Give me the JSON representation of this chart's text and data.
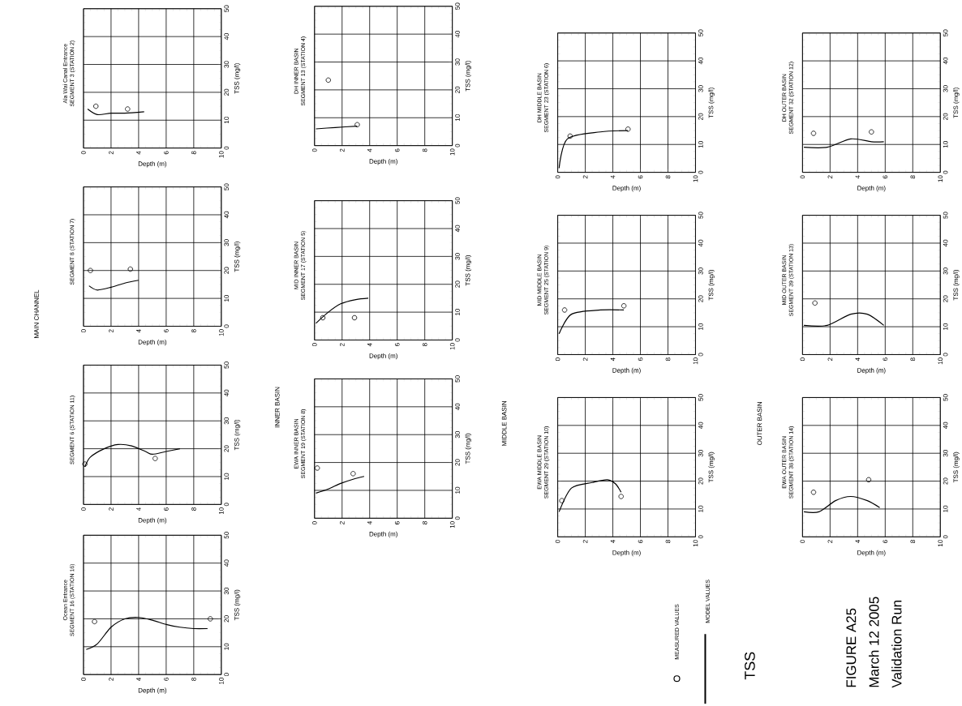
{
  "chart_data": [
    {
      "type": "line",
      "title": "Ala Wai Canal Entrance",
      "subtitle": "SEGMENT 3 (STATION 2)",
      "xlabel": "Depth (m)",
      "ylabel": "TSS (mg/l)",
      "xlim": [
        0,
        10
      ],
      "ylim": [
        0,
        50
      ],
      "xticks": [
        0,
        2,
        4,
        6,
        8,
        10
      ],
      "yticks": [
        0,
        10,
        20,
        30,
        40,
        50
      ],
      "grid": true,
      "series": [
        {
          "type": "line",
          "color": "#000000",
          "line_style": "solid",
          "x": [
            0.3,
            1,
            2,
            3,
            4.4
          ],
          "values": [
            14,
            12,
            12.5,
            12.5,
            13
          ]
        },
        {
          "type": "scatter",
          "color": "#000000",
          "marker": "circle",
          "x": [
            0.9,
            3.2
          ],
          "values": [
            15,
            14
          ]
        }
      ]
    },
    {
      "type": "line",
      "title": "SEGMENT 8 (STATION 7)",
      "xlabel": "Depth (m)",
      "ylabel": "TSS (mg/l)",
      "xlim": [
        0,
        10
      ],
      "ylim": [
        0,
        50
      ],
      "xticks": [
        0,
        2,
        4,
        6,
        8,
        10
      ],
      "yticks": [
        0,
        10,
        20,
        30,
        40,
        50
      ],
      "grid": true,
      "series": [
        {
          "type": "line",
          "color": "#000000",
          "line_style": "solid",
          "x": [
            0.4,
            1,
            2,
            3,
            4
          ],
          "values": [
            14.5,
            13,
            14,
            15.5,
            16.5
          ]
        },
        {
          "type": "scatter",
          "color": "#000000",
          "marker": "circle",
          "x": [
            0.5,
            3.4
          ],
          "values": [
            20,
            20.5
          ]
        }
      ]
    },
    {
      "type": "line",
      "title": "SEGMENT 6 (STATION 11)",
      "xlabel": "Depth (m)",
      "ylabel": "TSS (mg/l)",
      "xlim": [
        0,
        10
      ],
      "ylim": [
        0,
        50
      ],
      "xticks": [
        0,
        2,
        4,
        6,
        8,
        10
      ],
      "yticks": [
        0,
        10,
        20,
        30,
        40,
        50
      ],
      "grid": true,
      "series": [
        {
          "type": "line",
          "color": "#000000",
          "line_style": "solid",
          "x": [
            0.1,
            0.5,
            1.5,
            2.5,
            3.5,
            4.5,
            5,
            6,
            7
          ],
          "values": [
            13.5,
            17,
            20,
            21.5,
            21,
            19,
            18,
            19,
            20
          ]
        },
        {
          "type": "scatter",
          "color": "#000000",
          "marker": "circle",
          "x": [
            0.1,
            5.2
          ],
          "values": [
            14.5,
            16.5
          ]
        }
      ]
    },
    {
      "type": "line",
      "title": "Ocean Entrance",
      "subtitle": "SEGMENT 16 (STATION 16)",
      "xlabel": "Depth (m)",
      "ylabel": "TSS (mg/l)",
      "xlim": [
        0,
        10
      ],
      "ylim": [
        0,
        50
      ],
      "xticks": [
        0,
        2,
        4,
        6,
        8,
        10
      ],
      "yticks": [
        0,
        10,
        20,
        30,
        40,
        50
      ],
      "grid": true,
      "series": [
        {
          "type": "line",
          "color": "#000000",
          "line_style": "solid",
          "x": [
            0.2,
            1,
            2,
            3,
            4,
            5,
            6,
            7,
            8,
            9
          ],
          "values": [
            9,
            11,
            17,
            20,
            20.5,
            19.5,
            18,
            17,
            16.5,
            16.5
          ]
        },
        {
          "type": "scatter",
          "color": "#000000",
          "marker": "circle",
          "x": [
            0.8,
            9.2
          ],
          "values": [
            19,
            20
          ]
        }
      ]
    },
    {
      "type": "line",
      "title": "DH INNER BASIN",
      "subtitle": "SEGMENT 13 (STATION 4)",
      "xlabel": "Depth (m)",
      "ylabel": "TSS (mg/l)",
      "xlim": [
        0,
        10
      ],
      "ylim": [
        0,
        50
      ],
      "xticks": [
        0,
        2,
        4,
        6,
        8,
        10
      ],
      "yticks": [
        0,
        10,
        20,
        30,
        40,
        50
      ],
      "grid": true,
      "series": [
        {
          "type": "line",
          "color": "#000000",
          "line_style": "solid",
          "x": [
            0.1,
            1.5,
            3.1
          ],
          "values": [
            6,
            6.5,
            7
          ]
        },
        {
          "type": "scatter",
          "color": "#000000",
          "marker": "circle",
          "x": [
            1,
            3.1
          ],
          "values": [
            23.5,
            7.5
          ]
        }
      ]
    },
    {
      "type": "line",
      "title": "MID INNER BASIN",
      "subtitle": "SEGMENT 17 (STATION 5)",
      "xlabel": "Depth (m)",
      "ylabel": "TSS (mg/l)",
      "xlim": [
        0,
        10
      ],
      "ylim": [
        0,
        50
      ],
      "xticks": [
        0,
        2,
        4,
        6,
        8,
        10
      ],
      "yticks": [
        0,
        10,
        20,
        30,
        40,
        50
      ],
      "grid": true,
      "series": [
        {
          "type": "line",
          "color": "#000000",
          "line_style": "solid",
          "x": [
            0.1,
            1,
            1.9,
            3,
            3.9
          ],
          "values": [
            6,
            10,
            13,
            14.5,
            15
          ]
        },
        {
          "type": "scatter",
          "color": "#000000",
          "marker": "circle",
          "x": [
            0.6,
            2.9
          ],
          "values": [
            8,
            8
          ]
        }
      ]
    },
    {
      "type": "line",
      "title": "EWA INNER BASIN",
      "subtitle": "SEGMENT 19 (STATION 8)",
      "xlabel": "Depth (m)",
      "ylabel": "TSS (mg/l)",
      "xlim": [
        0,
        10
      ],
      "ylim": [
        0,
        50
      ],
      "xticks": [
        0,
        2,
        4,
        6,
        8,
        10
      ],
      "yticks": [
        0,
        10,
        20,
        30,
        40,
        50
      ],
      "grid": true,
      "series": [
        {
          "type": "line",
          "color": "#000000",
          "line_style": "solid",
          "x": [
            0.1,
            1,
            1.9,
            2.8,
            3.6
          ],
          "values": [
            9,
            10.5,
            12.5,
            14,
            15
          ]
        },
        {
          "type": "scatter",
          "color": "#000000",
          "marker": "circle",
          "x": [
            0.2,
            2.8
          ],
          "values": [
            18,
            16
          ]
        }
      ]
    },
    {
      "type": "line",
      "title": "DH MIDDLE BASIN",
      "subtitle": "SEGMENT 23 (STATION 6)",
      "xlabel": "Depth (m)",
      "ylabel": "TSS (mg/l)",
      "xlim": [
        0,
        10
      ],
      "ylim": [
        0,
        50
      ],
      "xticks": [
        0,
        2,
        4,
        6,
        8,
        10
      ],
      "yticks": [
        0,
        10,
        20,
        30,
        40,
        50
      ],
      "grid": true,
      "series": [
        {
          "type": "line",
          "color": "#000000",
          "line_style": "solid",
          "x": [
            0.1,
            0.7,
            3.1,
            5.1
          ],
          "values": [
            1.5,
            12,
            14.5,
            15
          ]
        },
        {
          "type": "scatter",
          "color": "#000000",
          "marker": "circle",
          "x": [
            0.9,
            5.1
          ],
          "values": [
            13,
            15.5
          ]
        }
      ]
    },
    {
      "type": "line",
      "title": "MID MIDDLE BASIN",
      "subtitle": "SEGMENT 25 (STATION 9)",
      "xlabel": "Depth (m)",
      "ylabel": "TSS (mg/l)",
      "xlim": [
        0,
        10
      ],
      "ylim": [
        0,
        50
      ],
      "xticks": [
        0,
        2,
        4,
        6,
        8,
        10
      ],
      "yticks": [
        0,
        10,
        20,
        30,
        40,
        50
      ],
      "grid": true,
      "series": [
        {
          "type": "line",
          "color": "#000000",
          "line_style": "solid",
          "x": [
            0.1,
            1,
            3.1,
            4.8
          ],
          "values": [
            7.5,
            14.5,
            16,
            16
          ]
        },
        {
          "type": "scatter",
          "color": "#000000",
          "marker": "circle",
          "x": [
            0.5,
            4.8
          ],
          "values": [
            16,
            17.5
          ]
        }
      ]
    },
    {
      "type": "line",
      "title": "EWA MIDDLE BASIN",
      "subtitle": "SEGMENT 29 (STATION 10)",
      "xlabel": "Depth (m)",
      "ylabel": "TSS (mg/l)",
      "xlim": [
        0,
        10
      ],
      "ylim": [
        0,
        50
      ],
      "xticks": [
        0,
        2,
        4,
        6,
        8,
        10
      ],
      "yticks": [
        0,
        10,
        20,
        30,
        40,
        50
      ],
      "grid": true,
      "series": [
        {
          "type": "line",
          "color": "#000000",
          "line_style": "solid",
          "x": [
            0.1,
            1,
            2.5,
            3.6,
            4.2,
            4.6
          ],
          "values": [
            9,
            17.5,
            19.5,
            20.5,
            19,
            16
          ]
        },
        {
          "type": "scatter",
          "color": "#000000",
          "marker": "circle",
          "x": [
            0.3,
            4.6
          ],
          "values": [
            13,
            14.5
          ]
        }
      ]
    },
    {
      "type": "line",
      "title": "DH OUTER BASIN",
      "subtitle": "SEGMENT 32 (STATION 12)",
      "xlabel": "Depth (m)",
      "ylabel": "TSS (mg/l)",
      "xlim": [
        0,
        10
      ],
      "ylim": [
        0,
        50
      ],
      "xticks": [
        0,
        2,
        4,
        6,
        8,
        10
      ],
      "yticks": [
        0,
        10,
        20,
        30,
        40,
        50
      ],
      "grid": true,
      "series": [
        {
          "type": "line",
          "color": "#000000",
          "line_style": "solid",
          "x": [
            0.1,
            1.8,
            3.5,
            5,
            5.9
          ],
          "values": [
            9,
            9,
            12,
            11,
            11
          ]
        },
        {
          "type": "scatter",
          "color": "#000000",
          "marker": "circle",
          "x": [
            0.8,
            5
          ],
          "values": [
            14,
            14.5
          ]
        }
      ]
    },
    {
      "type": "line",
      "title": "MID OUTER BASIN",
      "subtitle": "SEGMENT 39 (STATION 13)",
      "xlabel": "Depth (m)",
      "ylabel": "TSS (mg/l)",
      "xlim": [
        0,
        10
      ],
      "ylim": [
        0,
        50
      ],
      "xticks": [
        0,
        2,
        4,
        6,
        8,
        10
      ],
      "yticks": [
        0,
        10,
        20,
        30,
        40,
        50
      ],
      "grid": true,
      "series": [
        {
          "type": "line",
          "color": "#000000",
          "line_style": "solid",
          "x": [
            0.1,
            1.8,
            3.5,
            4.7,
            5.9
          ],
          "values": [
            10.5,
            10.5,
            14.5,
            14.5,
            10.5
          ]
        },
        {
          "type": "scatter",
          "color": "#000000",
          "marker": "circle",
          "x": [
            0.9
          ],
          "values": [
            18.5
          ]
        }
      ]
    },
    {
      "type": "line",
      "title": "EWA OUTER BASIN",
      "subtitle": "SEGMENT 38 (STATION 14)",
      "xlabel": "Depth (m)",
      "ylabel": "TSS (mg/l)",
      "xlim": [
        0,
        10
      ],
      "ylim": [
        0,
        50
      ],
      "xticks": [
        0,
        2,
        4,
        6,
        8,
        10
      ],
      "yticks": [
        0,
        10,
        20,
        30,
        40,
        50
      ],
      "grid": true,
      "series": [
        {
          "type": "line",
          "color": "#000000",
          "line_style": "solid",
          "x": [
            0.1,
            1.2,
            2.4,
            3.5,
            4.7,
            5.6
          ],
          "values": [
            9,
            9,
            13,
            14.5,
            13,
            10.5
          ]
        },
        {
          "type": "scatter",
          "color": "#000000",
          "marker": "circle",
          "x": [
            0.8,
            4.8
          ],
          "values": [
            16,
            20.5
          ]
        }
      ]
    },
    {
      "type": "other",
      "title": "FIGURE A25",
      "subtitle": "March 12 2005",
      "annotations": [
        "Validation Run",
        "TSS",
        "MAIN CHANNEL",
        "INNER BASIN",
        "MIDDLE BASIN",
        "OUTER BASIN",
        "MEASURED VALUES",
        "MODEL VALUES"
      ]
    }
  ]
}
